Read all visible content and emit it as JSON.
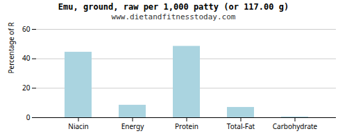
{
  "chart_data": {
    "type": "bar",
    "title": "Emu, ground, raw per 1,000 patty (or 117.00 g)",
    "subtitle": "www.dietandfitnesstoday.com",
    "categories": [
      "Niacin",
      "Energy",
      "Protein",
      "Total-Fat",
      "Carbohydrate"
    ],
    "values": [
      44.5,
      8.5,
      48.5,
      7.0,
      0.5
    ],
    "color": "#aad4e0",
    "ylabel": "Percentage of RDH (%)",
    "ylim": [
      0,
      60
    ],
    "yticks": [
      0,
      20,
      40,
      60
    ],
    "grid": true
  }
}
